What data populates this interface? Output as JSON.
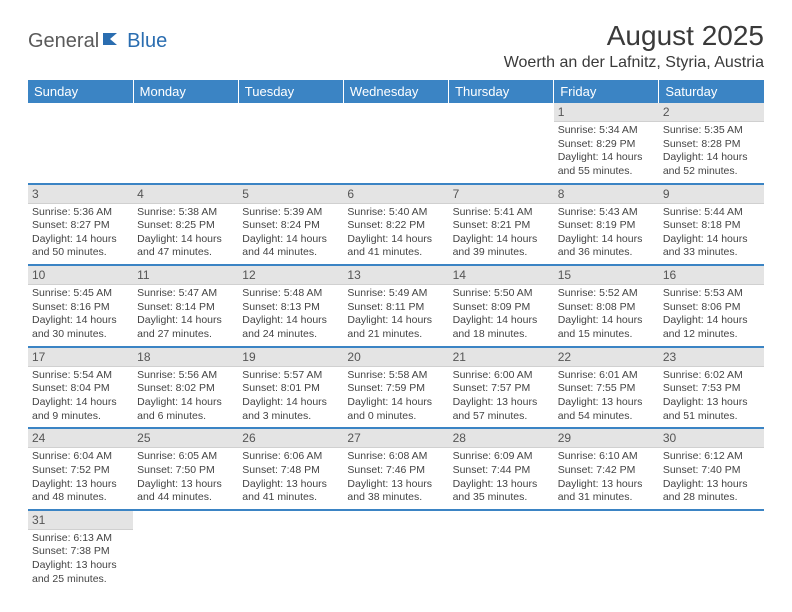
{
  "logo": {
    "text1": "General",
    "text2": "Blue"
  },
  "title": "August 2025",
  "location": "Woerth an der Lafnitz, Styria, Austria",
  "colors": {
    "header_bg": "#3b84c4",
    "header_fg": "#ffffff",
    "daynum_bg": "#e4e4e4",
    "border": "#3b84c4"
  },
  "day_headers": [
    "Sunday",
    "Monday",
    "Tuesday",
    "Wednesday",
    "Thursday",
    "Friday",
    "Saturday"
  ],
  "weeks": [
    [
      null,
      null,
      null,
      null,
      null,
      {
        "n": "1",
        "sr": "Sunrise: 5:34 AM",
        "ss": "Sunset: 8:29 PM",
        "dl1": "Daylight: 14 hours",
        "dl2": "and 55 minutes."
      },
      {
        "n": "2",
        "sr": "Sunrise: 5:35 AM",
        "ss": "Sunset: 8:28 PM",
        "dl1": "Daylight: 14 hours",
        "dl2": "and 52 minutes."
      }
    ],
    [
      {
        "n": "3",
        "sr": "Sunrise: 5:36 AM",
        "ss": "Sunset: 8:27 PM",
        "dl1": "Daylight: 14 hours",
        "dl2": "and 50 minutes."
      },
      {
        "n": "4",
        "sr": "Sunrise: 5:38 AM",
        "ss": "Sunset: 8:25 PM",
        "dl1": "Daylight: 14 hours",
        "dl2": "and 47 minutes."
      },
      {
        "n": "5",
        "sr": "Sunrise: 5:39 AM",
        "ss": "Sunset: 8:24 PM",
        "dl1": "Daylight: 14 hours",
        "dl2": "and 44 minutes."
      },
      {
        "n": "6",
        "sr": "Sunrise: 5:40 AM",
        "ss": "Sunset: 8:22 PM",
        "dl1": "Daylight: 14 hours",
        "dl2": "and 41 minutes."
      },
      {
        "n": "7",
        "sr": "Sunrise: 5:41 AM",
        "ss": "Sunset: 8:21 PM",
        "dl1": "Daylight: 14 hours",
        "dl2": "and 39 minutes."
      },
      {
        "n": "8",
        "sr": "Sunrise: 5:43 AM",
        "ss": "Sunset: 8:19 PM",
        "dl1": "Daylight: 14 hours",
        "dl2": "and 36 minutes."
      },
      {
        "n": "9",
        "sr": "Sunrise: 5:44 AM",
        "ss": "Sunset: 8:18 PM",
        "dl1": "Daylight: 14 hours",
        "dl2": "and 33 minutes."
      }
    ],
    [
      {
        "n": "10",
        "sr": "Sunrise: 5:45 AM",
        "ss": "Sunset: 8:16 PM",
        "dl1": "Daylight: 14 hours",
        "dl2": "and 30 minutes."
      },
      {
        "n": "11",
        "sr": "Sunrise: 5:47 AM",
        "ss": "Sunset: 8:14 PM",
        "dl1": "Daylight: 14 hours",
        "dl2": "and 27 minutes."
      },
      {
        "n": "12",
        "sr": "Sunrise: 5:48 AM",
        "ss": "Sunset: 8:13 PM",
        "dl1": "Daylight: 14 hours",
        "dl2": "and 24 minutes."
      },
      {
        "n": "13",
        "sr": "Sunrise: 5:49 AM",
        "ss": "Sunset: 8:11 PM",
        "dl1": "Daylight: 14 hours",
        "dl2": "and 21 minutes."
      },
      {
        "n": "14",
        "sr": "Sunrise: 5:50 AM",
        "ss": "Sunset: 8:09 PM",
        "dl1": "Daylight: 14 hours",
        "dl2": "and 18 minutes."
      },
      {
        "n": "15",
        "sr": "Sunrise: 5:52 AM",
        "ss": "Sunset: 8:08 PM",
        "dl1": "Daylight: 14 hours",
        "dl2": "and 15 minutes."
      },
      {
        "n": "16",
        "sr": "Sunrise: 5:53 AM",
        "ss": "Sunset: 8:06 PM",
        "dl1": "Daylight: 14 hours",
        "dl2": "and 12 minutes."
      }
    ],
    [
      {
        "n": "17",
        "sr": "Sunrise: 5:54 AM",
        "ss": "Sunset: 8:04 PM",
        "dl1": "Daylight: 14 hours",
        "dl2": "and 9 minutes."
      },
      {
        "n": "18",
        "sr": "Sunrise: 5:56 AM",
        "ss": "Sunset: 8:02 PM",
        "dl1": "Daylight: 14 hours",
        "dl2": "and 6 minutes."
      },
      {
        "n": "19",
        "sr": "Sunrise: 5:57 AM",
        "ss": "Sunset: 8:01 PM",
        "dl1": "Daylight: 14 hours",
        "dl2": "and 3 minutes."
      },
      {
        "n": "20",
        "sr": "Sunrise: 5:58 AM",
        "ss": "Sunset: 7:59 PM",
        "dl1": "Daylight: 14 hours",
        "dl2": "and 0 minutes."
      },
      {
        "n": "21",
        "sr": "Sunrise: 6:00 AM",
        "ss": "Sunset: 7:57 PM",
        "dl1": "Daylight: 13 hours",
        "dl2": "and 57 minutes."
      },
      {
        "n": "22",
        "sr": "Sunrise: 6:01 AM",
        "ss": "Sunset: 7:55 PM",
        "dl1": "Daylight: 13 hours",
        "dl2": "and 54 minutes."
      },
      {
        "n": "23",
        "sr": "Sunrise: 6:02 AM",
        "ss": "Sunset: 7:53 PM",
        "dl1": "Daylight: 13 hours",
        "dl2": "and 51 minutes."
      }
    ],
    [
      {
        "n": "24",
        "sr": "Sunrise: 6:04 AM",
        "ss": "Sunset: 7:52 PM",
        "dl1": "Daylight: 13 hours",
        "dl2": "and 48 minutes."
      },
      {
        "n": "25",
        "sr": "Sunrise: 6:05 AM",
        "ss": "Sunset: 7:50 PM",
        "dl1": "Daylight: 13 hours",
        "dl2": "and 44 minutes."
      },
      {
        "n": "26",
        "sr": "Sunrise: 6:06 AM",
        "ss": "Sunset: 7:48 PM",
        "dl1": "Daylight: 13 hours",
        "dl2": "and 41 minutes."
      },
      {
        "n": "27",
        "sr": "Sunrise: 6:08 AM",
        "ss": "Sunset: 7:46 PM",
        "dl1": "Daylight: 13 hours",
        "dl2": "and 38 minutes."
      },
      {
        "n": "28",
        "sr": "Sunrise: 6:09 AM",
        "ss": "Sunset: 7:44 PM",
        "dl1": "Daylight: 13 hours",
        "dl2": "and 35 minutes."
      },
      {
        "n": "29",
        "sr": "Sunrise: 6:10 AM",
        "ss": "Sunset: 7:42 PM",
        "dl1": "Daylight: 13 hours",
        "dl2": "and 31 minutes."
      },
      {
        "n": "30",
        "sr": "Sunrise: 6:12 AM",
        "ss": "Sunset: 7:40 PM",
        "dl1": "Daylight: 13 hours",
        "dl2": "and 28 minutes."
      }
    ],
    [
      {
        "n": "31",
        "sr": "Sunrise: 6:13 AM",
        "ss": "Sunset: 7:38 PM",
        "dl1": "Daylight: 13 hours",
        "dl2": "and 25 minutes."
      },
      null,
      null,
      null,
      null,
      null,
      null
    ]
  ]
}
